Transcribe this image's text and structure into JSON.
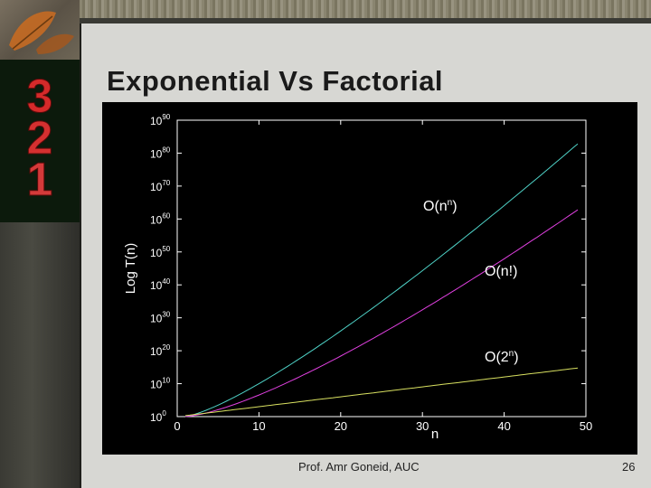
{
  "slide": {
    "title": "Exponential Vs Factorial",
    "footer_author": "Prof. Amr Goneid, AUC",
    "page_number": "26"
  },
  "chart_data": {
    "type": "line",
    "title": "",
    "xlabel": "n",
    "ylabel": "Log T(n)",
    "xlim": [
      0,
      50
    ],
    "ylim_log10": [
      0,
      90
    ],
    "x_ticks": [
      0,
      10,
      20,
      30,
      40,
      50
    ],
    "y_ticks_exponents": [
      0,
      10,
      20,
      30,
      40,
      50,
      60,
      70,
      80,
      90
    ],
    "y_tick_base": "10",
    "grid": false,
    "series": [
      {
        "name": "O(n^n)",
        "label_base": "O(n",
        "label_sup": "n",
        "label_end": ")",
        "color": "#4fd3c8",
        "formula": "n^n",
        "x_range": [
          1,
          49
        ]
      },
      {
        "name": "O(n!)",
        "label_base": "O(n!)",
        "label_sup": "",
        "label_end": "",
        "color": "#e040e0",
        "formula": "n!",
        "x_range": [
          1,
          49
        ]
      },
      {
        "name": "O(2^n)",
        "label_base": "O(2",
        "label_sup": "n",
        "label_end": ")",
        "color": "#d8e060",
        "formula": "2^n",
        "x_range": [
          1,
          49
        ]
      }
    ]
  }
}
